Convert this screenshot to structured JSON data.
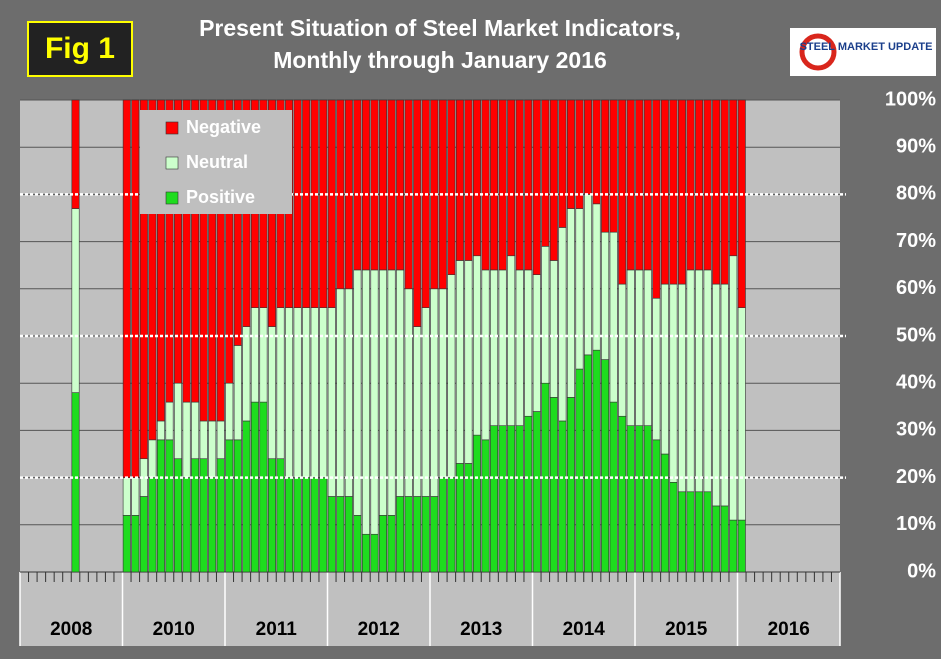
{
  "chart_data": {
    "type": "stacked_bar",
    "title": [
      "Present Situation of Steel Market Indicators,",
      "Monthly through January 2016"
    ],
    "figure_label": "Fig 1",
    "logo_text": "STEEL MARKET UPDATE",
    "year_labels": [
      "2008",
      "2010",
      "2011",
      "2012",
      "2013",
      "2014",
      "2015",
      "2016"
    ],
    "categories": [
      null,
      null,
      null,
      null,
      null,
      null,
      null,
      null,
      null,
      null,
      null,
      null,
      null,
      null,
      null,
      null,
      null,
      null,
      null,
      null,
      null,
      null,
      null,
      null,
      null,
      null,
      null,
      null,
      null,
      null,
      null,
      null,
      null,
      null,
      null,
      null,
      null,
      null,
      null,
      null,
      null,
      null,
      null,
      null,
      null,
      null,
      null,
      null,
      null,
      null,
      null,
      null,
      null,
      null,
      null,
      null,
      null,
      null,
      null,
      null,
      null,
      null,
      null,
      null,
      null,
      null,
      null,
      null,
      null,
      null,
      null,
      null,
      null,
      null,
      null,
      null,
      null,
      null,
      null,
      null,
      null,
      null,
      null,
      null,
      null,
      null,
      null,
      null,
      null,
      null,
      null,
      null,
      null,
      null,
      null,
      null
    ],
    "series": [
      {
        "name": "Positive",
        "color": "#1edc1e",
        "values": [
          null,
          null,
          null,
          null,
          null,
          null,
          38,
          null,
          null,
          null,
          null,
          null,
          12,
          12,
          16,
          20,
          28,
          28,
          24,
          20,
          24,
          24,
          20,
          24,
          28,
          28,
          32,
          36,
          36,
          24,
          24,
          20,
          20,
          20,
          20,
          20,
          16,
          16,
          16,
          12,
          8,
          8,
          12,
          12,
          16,
          16,
          16,
          16,
          16,
          20,
          20,
          23,
          23,
          29,
          28,
          31,
          31,
          31,
          31,
          33,
          34,
          40,
          37,
          32,
          37,
          43,
          46,
          47,
          45,
          36,
          33,
          31,
          31,
          31,
          28,
          25,
          19,
          17,
          17,
          17,
          17,
          14,
          14,
          11,
          11,
          null,
          null,
          null,
          null,
          null,
          null,
          null,
          null,
          null,
          null,
          null
        ]
      },
      {
        "name": "Neutral",
        "color": "#ccffcc",
        "values": [
          null,
          null,
          null,
          null,
          null,
          null,
          39,
          null,
          null,
          null,
          null,
          null,
          8,
          8,
          8,
          8,
          4,
          8,
          16,
          16,
          12,
          8,
          12,
          8,
          12,
          20,
          20,
          20,
          20,
          28,
          32,
          36,
          36,
          36,
          36,
          36,
          40,
          44,
          44,
          52,
          56,
          56,
          52,
          52,
          48,
          44,
          36,
          40,
          44,
          40,
          43,
          43,
          43,
          38,
          36,
          33,
          33,
          36,
          33,
          31,
          29,
          29,
          29,
          41,
          40,
          34,
          34,
          31,
          27,
          36,
          28,
          33,
          33,
          33,
          30,
          36,
          42,
          44,
          47,
          47,
          47,
          47,
          47,
          56,
          45,
          null,
          null,
          null,
          null,
          null,
          null,
          null,
          null,
          null,
          null,
          null
        ]
      },
      {
        "name": "Negative",
        "color": "#ff0000",
        "values": [
          null,
          null,
          null,
          null,
          null,
          null,
          23,
          null,
          null,
          null,
          null,
          null,
          80,
          80,
          76,
          72,
          68,
          64,
          60,
          64,
          64,
          68,
          68,
          68,
          60,
          52,
          48,
          44,
          44,
          48,
          44,
          44,
          44,
          44,
          44,
          44,
          44,
          40,
          40,
          36,
          36,
          36,
          36,
          36,
          36,
          40,
          48,
          44,
          40,
          40,
          37,
          34,
          34,
          33,
          36,
          36,
          36,
          33,
          36,
          36,
          37,
          31,
          34,
          27,
          23,
          23,
          20,
          22,
          28,
          28,
          39,
          36,
          36,
          36,
          42,
          39,
          39,
          39,
          36,
          36,
          36,
          39,
          39,
          33,
          44,
          null,
          null,
          null,
          null,
          null,
          null,
          null,
          null,
          null,
          null,
          null
        ]
      }
    ],
    "ylim": [
      0,
      100
    ],
    "yticks": [
      {
        "value": 0,
        "label": "0%"
      },
      {
        "value": 10,
        "label": "10%"
      },
      {
        "value": 20,
        "label": "20%"
      },
      {
        "value": 30,
        "label": "30%"
      },
      {
        "value": 40,
        "label": "40%"
      },
      {
        "value": 50,
        "label": "50%"
      },
      {
        "value": 60,
        "label": "60%"
      },
      {
        "value": 70,
        "label": "70%"
      },
      {
        "value": 80,
        "label": "80%"
      },
      {
        "value": 90,
        "label": "90%"
      },
      {
        "value": 100,
        "label": "100%"
      }
    ],
    "reference_lines": [
      20,
      50,
      80
    ],
    "grid": true,
    "legend_position": "upper left"
  }
}
